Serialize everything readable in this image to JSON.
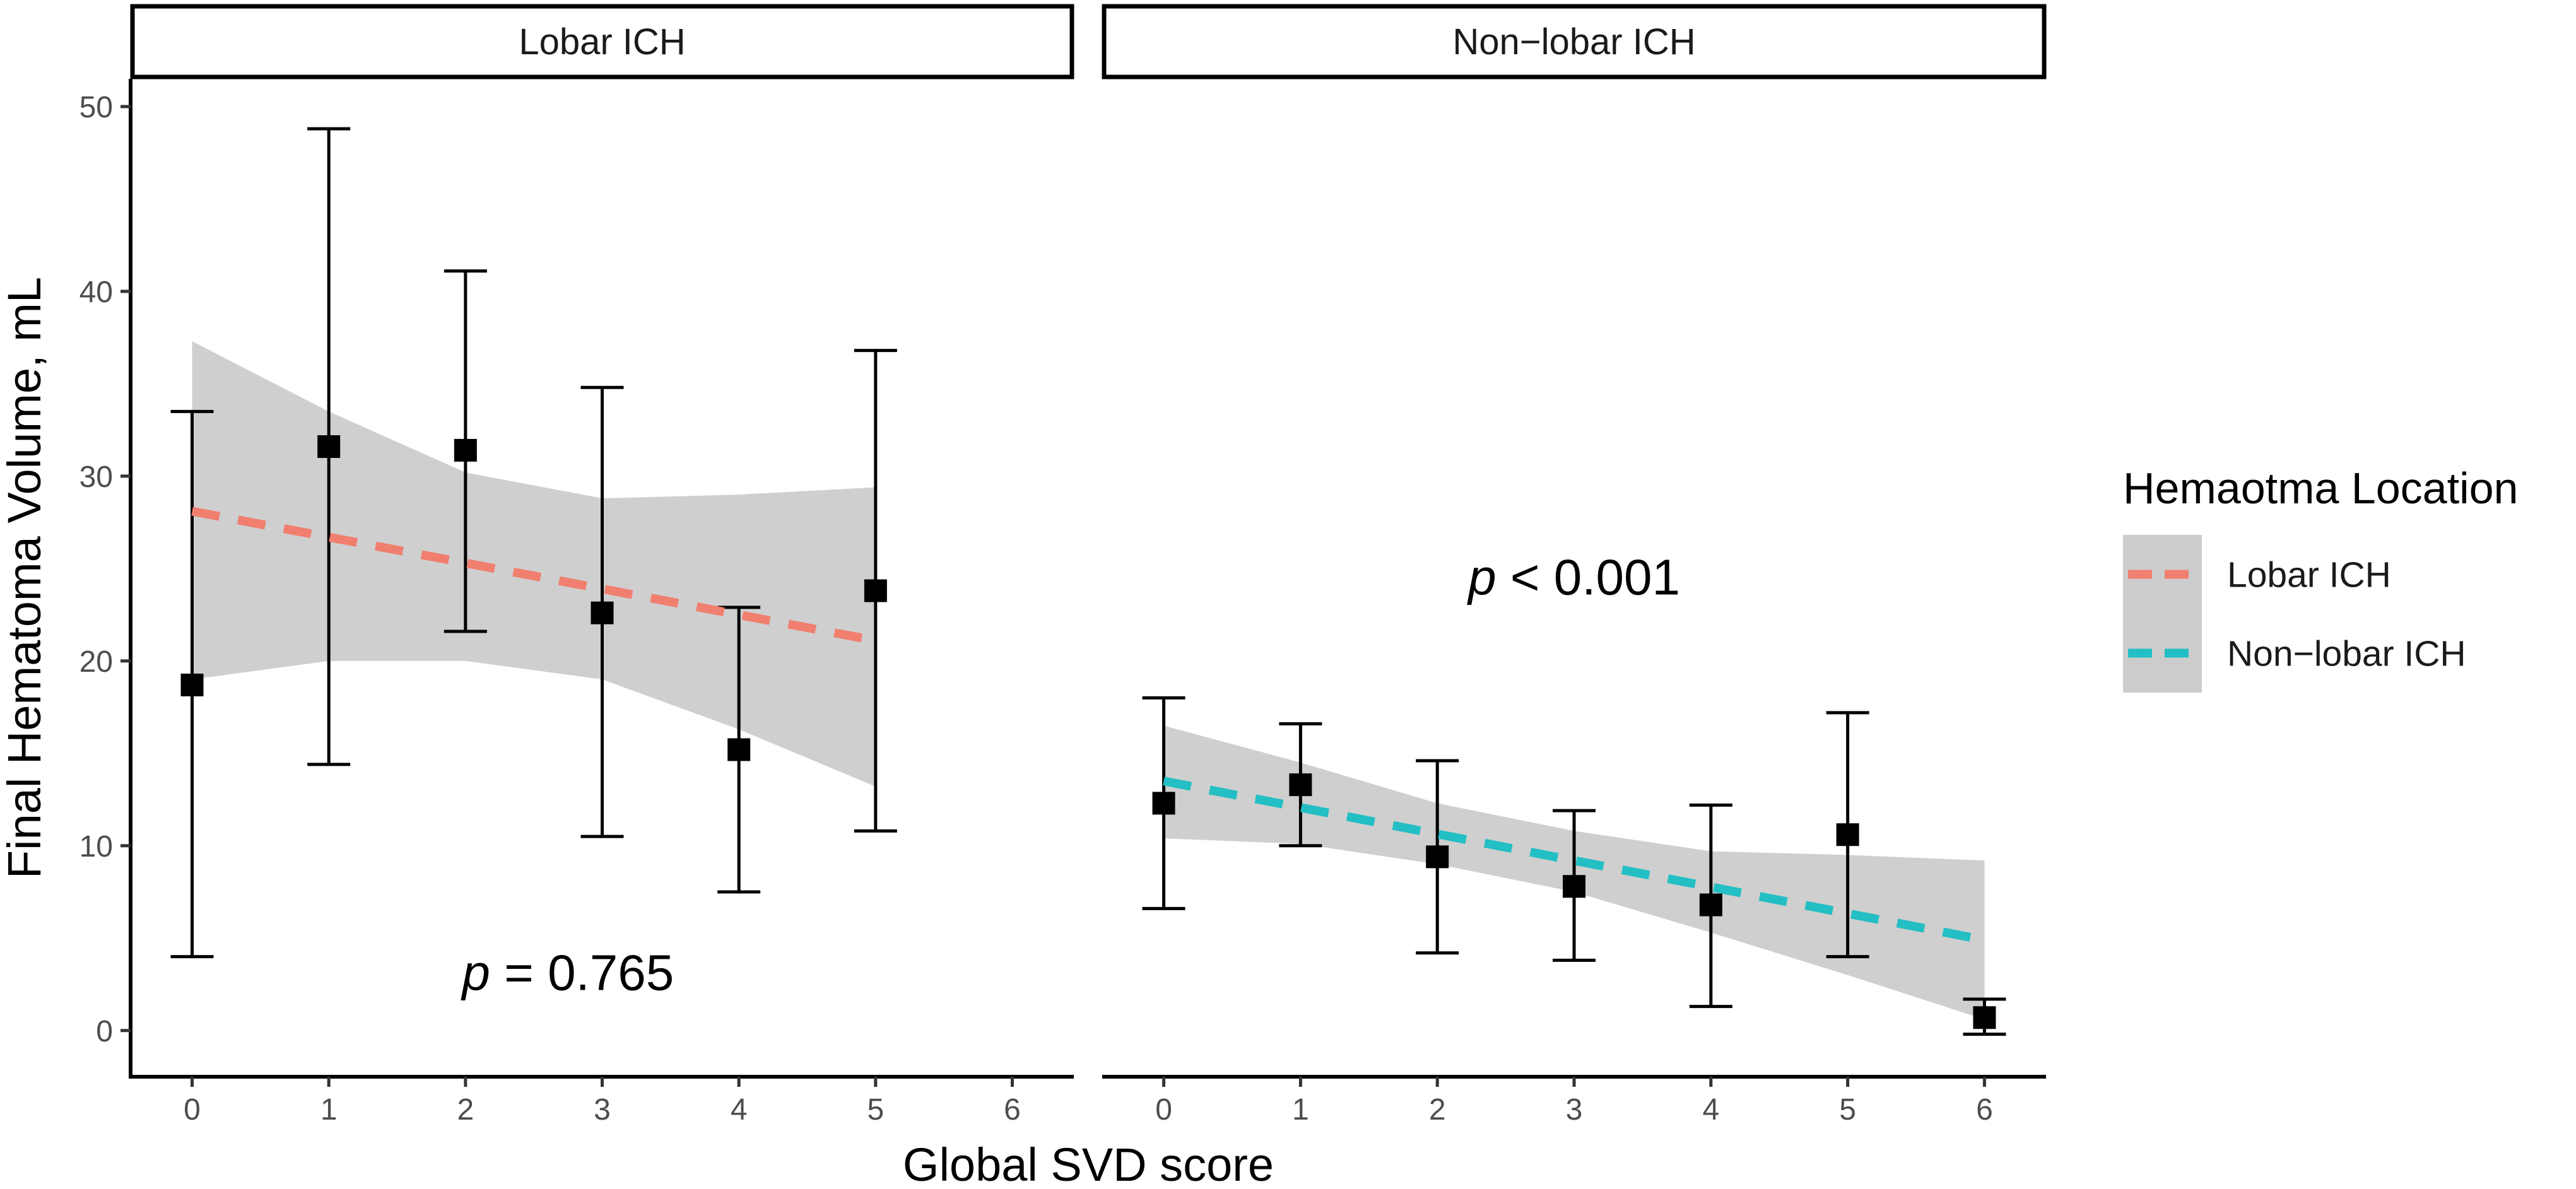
{
  "chart_data": {
    "type": "scatter",
    "ylabel": "Final Hematoma Volume, mL",
    "xlabel": "Global SVD score",
    "ylim": [
      -2.5,
      51.5
    ],
    "xlim": [
      -0.45,
      6.45
    ],
    "yticks": [
      0,
      10,
      20,
      30,
      40,
      50
    ],
    "xticks": [
      0,
      1,
      2,
      3,
      4,
      5,
      6
    ],
    "ytick_labels": [
      "0",
      "10",
      "20",
      "30",
      "40",
      "50"
    ],
    "xtick_labels": [
      "0",
      "1",
      "2",
      "3",
      "4",
      "5",
      "6"
    ],
    "grid": false,
    "legend": {
      "title": "Hemaotma Location",
      "placement": "right",
      "entries": [
        {
          "label": "Lobar ICH",
          "color": "#f07f6f"
        },
        {
          "label": "Non−lobar ICH",
          "color": "#23bfc4"
        }
      ]
    },
    "panels": [
      {
        "strip": "Lobar ICH",
        "color": "#f07f6f",
        "p_label": "p",
        "p_rest": " = 0.765",
        "p_anchor": {
          "x": 2.75,
          "y": 2.2
        },
        "points": [
          {
            "x": 0,
            "y": 18.7,
            "low": 4.0,
            "high": 33.5
          },
          {
            "x": 1,
            "y": 31.6,
            "low": 14.4,
            "high": 48.8
          },
          {
            "x": 2,
            "y": 31.4,
            "low": 21.6,
            "high": 41.1
          },
          {
            "x": 3,
            "y": 22.6,
            "low": 10.5,
            "high": 34.8
          },
          {
            "x": 4,
            "y": 15.2,
            "low": 7.5,
            "high": 22.9
          },
          {
            "x": 5,
            "y": 23.8,
            "low": 10.8,
            "high": 36.8
          }
        ],
        "trend": {
          "x_start": 0,
          "y_start": 28.1,
          "x_end": 5,
          "y_end": 21.1
        },
        "ci_band": [
          {
            "x": 0,
            "lower": 19.0,
            "upper": 37.3
          },
          {
            "x": 1,
            "lower": 20.0,
            "upper": 33.5
          },
          {
            "x": 2,
            "lower": 20.0,
            "upper": 30.2
          },
          {
            "x": 3,
            "lower": 19.0,
            "upper": 28.8
          },
          {
            "x": 4,
            "lower": 16.3,
            "upper": 29.0
          },
          {
            "x": 5,
            "lower": 13.2,
            "upper": 29.4
          }
        ]
      },
      {
        "strip": "Non−lobar ICH",
        "color": "#23bfc4",
        "p_label": "p",
        "p_rest": " < 0.001",
        "p_anchor": {
          "x": 3.0,
          "y": 23.6
        },
        "points": [
          {
            "x": 0,
            "y": 12.3,
            "low": 6.6,
            "high": 18.0
          },
          {
            "x": 1,
            "y": 13.3,
            "low": 10.0,
            "high": 16.6
          },
          {
            "x": 2,
            "y": 9.4,
            "low": 4.2,
            "high": 14.6
          },
          {
            "x": 3,
            "y": 7.8,
            "low": 3.8,
            "high": 11.9
          },
          {
            "x": 4,
            "y": 6.8,
            "low": 1.3,
            "high": 12.2
          },
          {
            "x": 5,
            "y": 10.6,
            "low": 4.0,
            "high": 17.2
          },
          {
            "x": 6,
            "y": 0.7,
            "low": -0.2,
            "high": 1.7
          }
        ],
        "trend": {
          "x_start": 0,
          "y_start": 13.5,
          "x_end": 6,
          "y_end": 4.9
        },
        "ci_band": [
          {
            "x": 0,
            "lower": 10.4,
            "upper": 16.5
          },
          {
            "x": 1,
            "lower": 10.1,
            "upper": 14.5
          },
          {
            "x": 2,
            "lower": 9.0,
            "upper": 12.3
          },
          {
            "x": 3,
            "lower": 7.5,
            "upper": 10.8
          },
          {
            "x": 4,
            "lower": 5.3,
            "upper": 9.7
          },
          {
            "x": 5,
            "lower": 3.0,
            "upper": 9.5
          },
          {
            "x": 6,
            "lower": 0.6,
            "upper": 9.2
          }
        ]
      }
    ]
  }
}
